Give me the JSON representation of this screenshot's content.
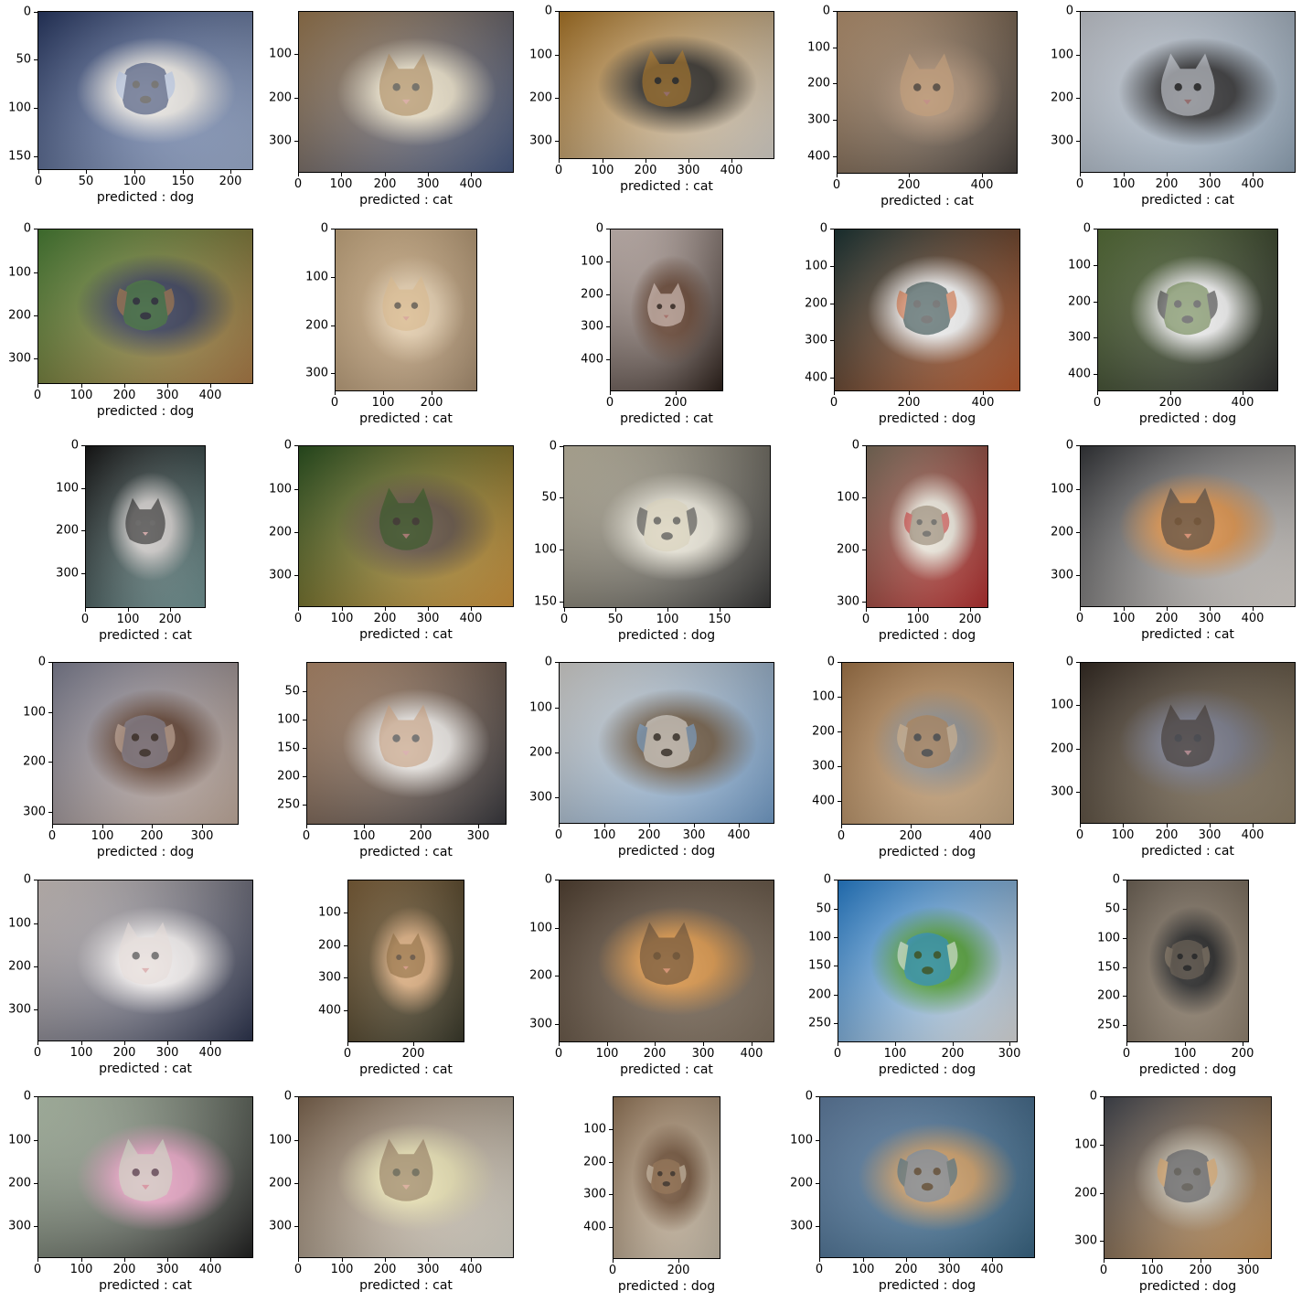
{
  "panels": [
    {
      "caption": "predicted : dog",
      "w": 224,
      "h": 165,
      "xticks": [
        0,
        50,
        100,
        150,
        200
      ],
      "yticks": [
        0,
        50,
        100,
        150
      ],
      "subject": "dog-icon",
      "colors": [
        "#2c3d6b",
        "#e9e6e2",
        "#aabde0"
      ]
    },
    {
      "caption": "predicted : cat",
      "w": 500,
      "h": 374,
      "xticks": [
        0,
        100,
        200,
        300,
        400
      ],
      "yticks": [
        100,
        200,
        300
      ],
      "subject": "cat-icon",
      "colors": [
        "#a88457",
        "#e6dcc4",
        "#4b5f8b"
      ]
    },
    {
      "caption": "predicted : cat",
      "w": 499,
      "h": 342,
      "xticks": [
        0,
        100,
        200,
        300,
        400
      ],
      "yticks": [
        0,
        100,
        200,
        300
      ],
      "subject": "cat-icon",
      "colors": [
        "#b87f2a",
        "#2a2620",
        "#e9e4dc"
      ]
    },
    {
      "caption": "predicted : cat",
      "w": 500,
      "h": 449,
      "xticks": [
        0,
        200,
        400
      ],
      "yticks": [
        0,
        100,
        200,
        300,
        400
      ],
      "subject": "cat-icon",
      "colors": [
        "#c8a27c",
        "#a7896e",
        "#4a4440"
      ]
    },
    {
      "caption": "predicted : cat",
      "w": 499,
      "h": 375,
      "xticks": [
        0,
        100,
        200,
        300,
        400
      ],
      "yticks": [
        0,
        100,
        200,
        300
      ],
      "subject": "cat-icon",
      "colors": [
        "#d8dce4",
        "#2a2a2c",
        "#9bb0c4"
      ]
    },
    {
      "caption": "predicted : dog",
      "w": 499,
      "h": 360,
      "xticks": [
        0,
        100,
        200,
        300,
        400
      ],
      "yticks": [
        0,
        100,
        200,
        300
      ],
      "subject": "dog-icon",
      "colors": [
        "#4f8a3a",
        "#2f3550",
        "#b8834a"
      ]
    },
    {
      "caption": "predicted : cat",
      "w": 296,
      "h": 338,
      "xticks": [
        0,
        100,
        200
      ],
      "yticks": [
        0,
        100,
        200,
        300
      ],
      "subject": "cat-icon",
      "colors": [
        "#d8b88c",
        "#e4ccaa",
        "#b49878"
      ]
    },
    {
      "caption": "predicted : cat",
      "w": 347,
      "h": 499,
      "xticks": [
        0,
        200
      ],
      "yticks": [
        0,
        100,
        200,
        300,
        400
      ],
      "subject": "cat-icon",
      "colors": [
        "#e7d6d0",
        "#5c3a28",
        "#2b1e18"
      ]
    },
    {
      "caption": "predicted : dog",
      "w": 500,
      "h": 437,
      "xticks": [
        0,
        200,
        400
      ],
      "yticks": [
        0,
        100,
        200,
        300,
        400
      ],
      "subject": "dog-icon",
      "colors": [
        "#1f3a3a",
        "#f0f0f0",
        "#c86030"
      ]
    },
    {
      "caption": "predicted : dog",
      "w": 499,
      "h": 448,
      "xticks": [
        0,
        200,
        400
      ],
      "yticks": [
        0,
        100,
        200,
        300,
        400
      ],
      "subject": "dog-icon",
      "colors": [
        "#5f7a3f",
        "#eeeeee",
        "#303030"
      ]
    },
    {
      "caption": "predicted : cat",
      "w": 284,
      "h": 383,
      "xticks": [
        0,
        100,
        200
      ],
      "yticks": [
        0,
        100,
        200,
        300
      ],
      "subject": "cat-icon",
      "colors": [
        "#1a1a1a",
        "#c9c6c4",
        "#7aa0a0"
      ]
    },
    {
      "caption": "predicted : cat",
      "w": 499,
      "h": 375,
      "xticks": [
        0,
        100,
        200,
        300,
        400
      ],
      "yticks": [
        0,
        100,
        200,
        300
      ],
      "subject": "cat-icon",
      "colors": [
        "#2f5a24",
        "#5a4838",
        "#e0a040"
      ]
    },
    {
      "caption": "predicted : dog",
      "w": 200,
      "h": 157,
      "xticks": [
        0,
        50,
        100,
        150
      ],
      "yticks": [
        0,
        50,
        100,
        150
      ],
      "subject": "dog-icon",
      "colors": [
        "#d8d0b8",
        "#e8e4d6",
        "#3a3a3a"
      ]
    },
    {
      "caption": "predicted : dog",
      "w": 235,
      "h": 312,
      "xticks": [
        0,
        100,
        200
      ],
      "yticks": [
        0,
        100,
        200,
        300
      ],
      "subject": "dog-icon",
      "colors": [
        "#8a7a66",
        "#ece6da",
        "#c03030"
      ]
    },
    {
      "caption": "predicted : cat",
      "w": 499,
      "h": 375,
      "xticks": [
        0,
        100,
        200,
        300,
        400
      ],
      "yticks": [
        0,
        100,
        200,
        300
      ],
      "subject": "cat-icon",
      "colors": [
        "#3a3c40",
        "#d88a40",
        "#f0eae4"
      ]
    },
    {
      "caption": "predicted : dog",
      "w": 374,
      "h": 327,
      "xticks": [
        0,
        100,
        200,
        300
      ],
      "yticks": [
        0,
        100,
        200,
        300
      ],
      "subject": "dog-icon",
      "colors": [
        "#8a8ca0",
        "#5a3a2a",
        "#d0b8a8"
      ]
    },
    {
      "caption": "predicted : cat",
      "w": 350,
      "h": 285,
      "xticks": [
        0,
        100,
        200,
        300
      ],
      "yticks": [
        50,
        100,
        150,
        200,
        250
      ],
      "subject": "cat-icon",
      "colors": [
        "#c49a78",
        "#e8e4e0",
        "#3a3a40"
      ]
    },
    {
      "caption": "predicted : dog",
      "w": 479,
      "h": 359,
      "xticks": [
        0,
        100,
        200,
        300,
        400
      ],
      "yticks": [
        0,
        100,
        200,
        300
      ],
      "subject": "dog-icon",
      "colors": [
        "#e8e6e2",
        "#6a5640",
        "#7aa8d8"
      ]
    },
    {
      "caption": "predicted : dog",
      "w": 499,
      "h": 469,
      "xticks": [
        0,
        200,
        400
      ],
      "yticks": [
        0,
        100,
        200,
        300,
        400
      ],
      "subject": "dog-icon",
      "colors": [
        "#b08050",
        "#8a8a8a",
        "#d8b890"
      ]
    },
    {
      "caption": "predicted : cat",
      "w": 500,
      "h": 375,
      "xticks": [
        0,
        100,
        200,
        300,
        400
      ],
      "yticks": [
        0,
        100,
        200,
        300
      ],
      "subject": "cat-icon",
      "colors": [
        "#3a3028",
        "#6e7080",
        "#9a8a70"
      ]
    },
    {
      "caption": "predicted : cat",
      "w": 499,
      "h": 375,
      "xticks": [
        0,
        100,
        200,
        300,
        400
      ],
      "yticks": [
        0,
        100,
        200,
        300
      ],
      "subject": "cat-icon",
      "colors": [
        "#e6dcd8",
        "#f2eeee",
        "#2c3450"
      ]
    },
    {
      "caption": "predicted : cat",
      "w": 360,
      "h": 499,
      "xticks": [
        0,
        200
      ],
      "yticks": [
        100,
        200,
        300,
        400
      ],
      "subject": "cat-icon",
      "colors": [
        "#8a6a40",
        "#d8a878",
        "#3a3a2a"
      ]
    },
    {
      "caption": "predicted : cat",
      "w": 449,
      "h": 338,
      "xticks": [
        0,
        100,
        200,
        300,
        400
      ],
      "yticks": [
        0,
        100,
        200,
        300
      ],
      "subject": "cat-icon",
      "colors": [
        "#5a4838",
        "#d89040",
        "#8a7a68"
      ]
    },
    {
      "caption": "predicted : dog",
      "w": 314,
      "h": 284,
      "xticks": [
        0,
        100,
        200,
        300
      ],
      "yticks": [
        0,
        50,
        100,
        150,
        200,
        250
      ],
      "subject": "dog-icon",
      "colors": [
        "#2a8ae0",
        "#4a9a30",
        "#eeeeee"
      ]
    },
    {
      "caption": "predicted : dog",
      "w": 210,
      "h": 280,
      "xticks": [
        0,
        100,
        200
      ],
      "yticks": [
        0,
        50,
        100,
        150,
        200,
        250
      ],
      "subject": "dog-icon",
      "colors": [
        "#7a6e60",
        "#1a1a1a",
        "#9a8a76"
      ]
    },
    {
      "caption": "predicted : cat",
      "w": 499,
      "h": 375,
      "xticks": [
        0,
        100,
        200,
        300,
        400
      ],
      "yticks": [
        0,
        100,
        200,
        300
      ],
      "subject": "cat-icon",
      "colors": [
        "#cfe0c8",
        "#e4a0c0",
        "#202020"
      ]
    },
    {
      "caption": "predicted : cat",
      "w": 499,
      "h": 375,
      "xticks": [
        0,
        100,
        200,
        300,
        400
      ],
      "yticks": [
        0,
        100,
        200,
        300
      ],
      "subject": "cat-icon",
      "colors": [
        "#8a7058",
        "#e8e0b0",
        "#f0ece0"
      ]
    },
    {
      "caption": "predicted : dog",
      "w": 331,
      "h": 499,
      "xticks": [
        0,
        200
      ],
      "yticks": [
        100,
        200,
        300,
        400
      ],
      "subject": "dog-icon",
      "colors": [
        "#a08060",
        "#6a4a30",
        "#d8ccb8"
      ]
    },
    {
      "caption": "predicted : dog",
      "w": 499,
      "h": 375,
      "xticks": [
        0,
        100,
        200,
        300,
        400
      ],
      "yticks": [
        0,
        100,
        200,
        300
      ],
      "subject": "dog-icon",
      "colors": [
        "#6a8ab0",
        "#c89860",
        "#3a6a8a"
      ]
    },
    {
      "caption": "predicted : dog",
      "w": 350,
      "h": 338,
      "xticks": [
        0,
        100,
        200,
        300
      ],
      "yticks": [
        0,
        100,
        200,
        300
      ],
      "subject": "dog-icon",
      "colors": [
        "#4a4e58",
        "#c0b8a8",
        "#d8a060"
      ]
    }
  ]
}
